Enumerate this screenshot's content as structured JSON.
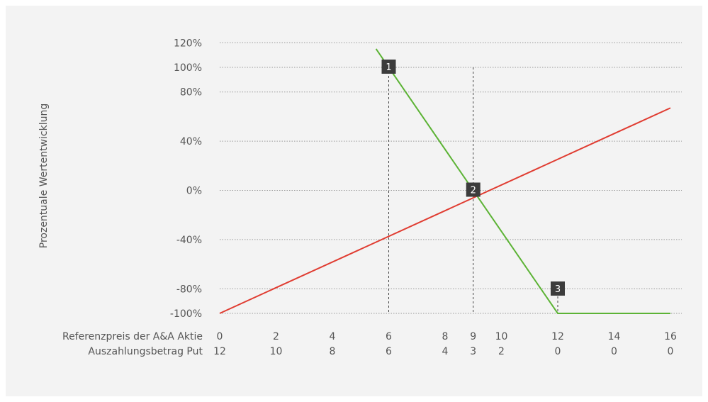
{
  "chart_data": {
    "type": "line",
    "title": "",
    "ylabel": "Prozentuale Wertentwicklung",
    "row_labels": [
      "Referenzpreis der A&A Aktie",
      "Auszahlungsbetrag Put"
    ],
    "x_ticks": [
      0,
      2,
      4,
      6,
      8,
      9,
      10,
      12,
      14,
      16
    ],
    "payout_ticks": [
      12,
      10,
      8,
      6,
      4,
      3,
      2,
      0,
      0,
      0
    ],
    "y_ticks": [
      120,
      100,
      80,
      40,
      0,
      -40,
      -80,
      -100
    ],
    "y_tick_labels": [
      "120%",
      "100%",
      "80%",
      "40%",
      "0%",
      "-40%",
      "-80%",
      "-100%"
    ],
    "xlim": [
      0,
      16
    ],
    "ylim": [
      -100,
      120
    ],
    "grid": true,
    "series": [
      {
        "color": "#e03c31",
        "x": [
          0,
          16
        ],
        "y": [
          -100,
          67
        ]
      },
      {
        "color": "#5cb335",
        "x": [
          5.55,
          6,
          12,
          16
        ],
        "y": [
          115,
          100,
          -100,
          -100
        ]
      }
    ],
    "markers": [
      {
        "label": "1",
        "x": 6,
        "y": 100
      },
      {
        "label": "2",
        "x": 9,
        "y": 0
      },
      {
        "label": "3",
        "x": 12,
        "y": -100
      }
    ],
    "vlines": [
      6,
      9
    ]
  }
}
